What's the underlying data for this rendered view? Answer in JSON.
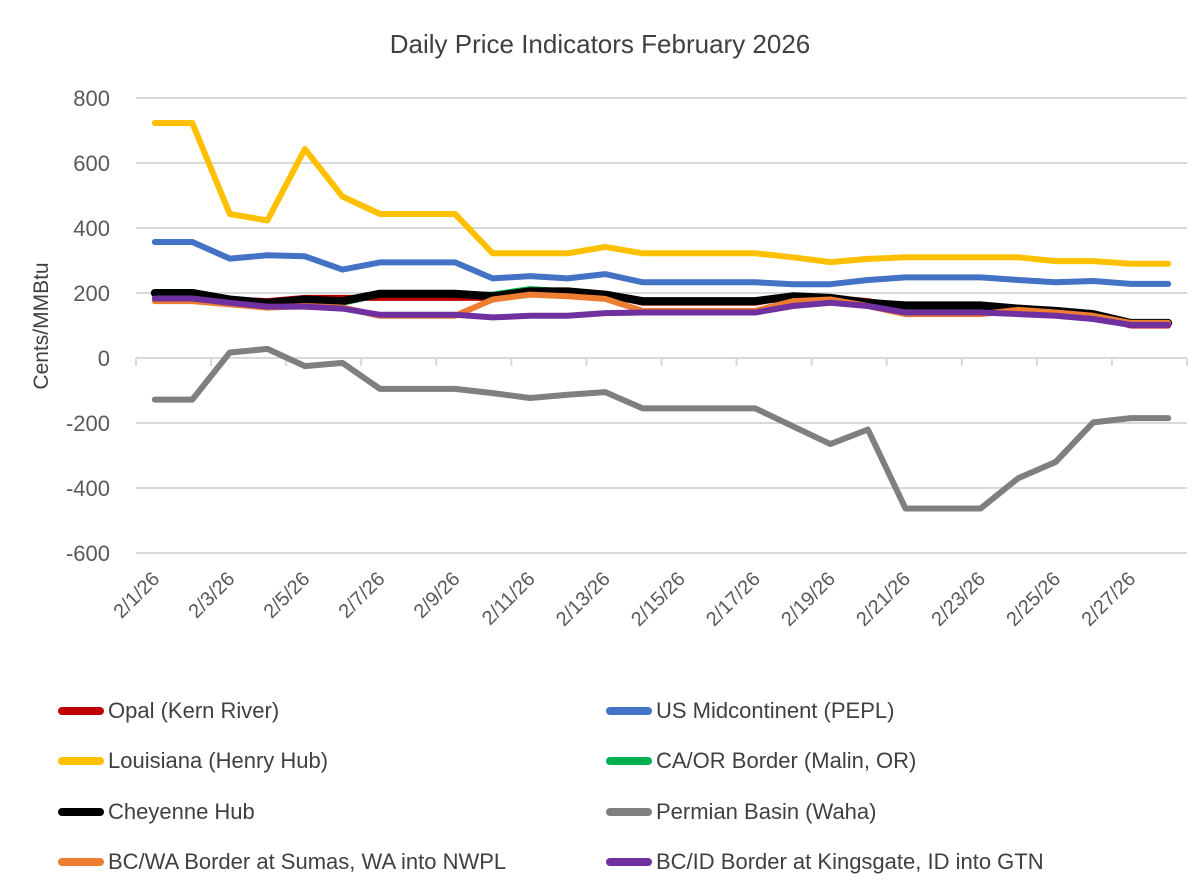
{
  "chart_data": {
    "type": "line",
    "title": "Daily Price Indicators February 2026",
    "xlabel": "",
    "ylabel": "Cents/MMBtu",
    "ylim": [
      -600,
      800
    ],
    "yticks": [
      "800",
      "600",
      "400",
      "200",
      "0",
      "-200",
      "-400",
      "-600"
    ],
    "ytick_values": [
      800,
      600,
      400,
      200,
      0,
      -200,
      -400,
      -600
    ],
    "grid": true,
    "legend_position": "bottom",
    "x": [
      "2/1/26",
      "2/2/26",
      "2/3/26",
      "2/4/26",
      "2/5/26",
      "2/6/26",
      "2/7/26",
      "2/8/26",
      "2/9/26",
      "2/10/26",
      "2/11/26",
      "2/12/26",
      "2/13/26",
      "2/14/26",
      "2/15/26",
      "2/16/26",
      "2/17/26",
      "2/18/26",
      "2/19/26",
      "2/20/26",
      "2/21/26",
      "2/22/26",
      "2/23/26",
      "2/24/26",
      "2/25/26",
      "2/26/26",
      "2/27/26",
      "2/28/26"
    ],
    "xtick_labels": [
      "2/1/26",
      "2/3/26",
      "2/5/26",
      "2/7/26",
      "2/9/26",
      "2/11/26",
      "2/13/26",
      "2/15/26",
      "2/17/26",
      "2/19/26",
      "2/21/26",
      "2/23/26",
      "2/25/26",
      "2/27/26"
    ],
    "series": [
      {
        "name": "Louisiana (Henry Hub)",
        "color": "#FFC000",
        "values": [
          723,
          723,
          443,
          423,
          643,
          497,
          443,
          443,
          443,
          322,
          322,
          322,
          342,
          322,
          322,
          322,
          322,
          310,
          295,
          305,
          310,
          310,
          310,
          310,
          298,
          298,
          290,
          290
        ]
      },
      {
        "name": "US Midcontinent (PEPL)",
        "color": "#4472C4",
        "values": [
          357,
          357,
          306,
          316,
          313,
          272,
          294,
          294,
          294,
          245,
          252,
          245,
          258,
          233,
          233,
          233,
          233,
          227,
          227,
          240,
          248,
          248,
          248,
          240,
          233,
          237,
          228,
          228
        ]
      },
      {
        "name": "Permian Basin (Waha)",
        "color": "#7F7F7F",
        "values": [
          -128,
          -128,
          17,
          28,
          -25,
          -15,
          -95,
          -95,
          -95,
          -108,
          -123,
          -113,
          -105,
          -155,
          -155,
          -155,
          -155,
          -210,
          -265,
          -220,
          -463,
          -463,
          -463,
          -370,
          -320,
          -198,
          -185,
          -185
        ]
      },
      {
        "name": "Opal (Kern River)",
        "color": "#C00000",
        "values": [
          195,
          195,
          180,
          175,
          185,
          185,
          185,
          185,
          185,
          185,
          205,
          205,
          195,
          170,
          170,
          170,
          170,
          190,
          185,
          175,
          155,
          155,
          155,
          155,
          145,
          130,
          100,
          100
        ]
      },
      {
        "name": "CA/OR Border (Malin, OR)",
        "color": "#00B050",
        "values": [
          195,
          195,
          178,
          172,
          180,
          170,
          195,
          195,
          195,
          195,
          212,
          205,
          195,
          172,
          172,
          172,
          172,
          188,
          182,
          172,
          158,
          158,
          158,
          150,
          142,
          132,
          105,
          105
        ]
      },
      {
        "name": "Cheyenne Hub",
        "color": "#000000",
        "values": [
          200,
          200,
          180,
          170,
          180,
          175,
          198,
          198,
          198,
          190,
          205,
          205,
          195,
          175,
          175,
          175,
          175,
          190,
          185,
          170,
          162,
          162,
          162,
          152,
          145,
          135,
          108,
          108
        ]
      },
      {
        "name": "BC/WA Border at Sumas, WA into NWPL",
        "color": "#ED7D31",
        "values": [
          175,
          175,
          165,
          155,
          160,
          155,
          130,
          130,
          130,
          180,
          195,
          190,
          182,
          145,
          145,
          145,
          145,
          175,
          180,
          160,
          135,
          135,
          135,
          148,
          140,
          130,
          108,
          108
        ]
      },
      {
        "name": "BC/ID Border at Kingsgate, ID into GTN",
        "color": "#7030A0",
        "values": [
          183,
          183,
          170,
          158,
          158,
          152,
          133,
          133,
          133,
          125,
          130,
          130,
          138,
          140,
          140,
          140,
          140,
          160,
          170,
          160,
          140,
          140,
          140,
          135,
          130,
          120,
          102,
          102
        ]
      }
    ],
    "legend": [
      {
        "name": "Opal (Kern River)",
        "color": "#C00000"
      },
      {
        "name": "US Midcontinent (PEPL)",
        "color": "#4472C4"
      },
      {
        "name": "Louisiana (Henry Hub)",
        "color": "#FFC000"
      },
      {
        "name": "CA/OR Border (Malin, OR)",
        "color": "#00B050"
      },
      {
        "name": "Cheyenne Hub",
        "color": "#000000"
      },
      {
        "name": "Permian Basin (Waha)",
        "color": "#7F7F7F"
      },
      {
        "name": "BC/WA Border at Sumas, WA into NWPL",
        "color": "#ED7D31"
      },
      {
        "name": "BC/ID Border at Kingsgate, ID into GTN",
        "color": "#7030A0"
      }
    ]
  }
}
